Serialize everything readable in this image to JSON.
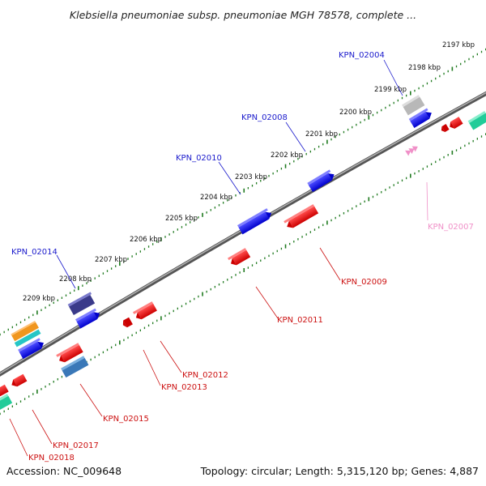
{
  "title": "Klebsiella pneumoniae subsp. pneumoniae MGH 78578, complete ...",
  "footer": {
    "accession": "Accession: NC_009648",
    "summary": "Topology: circular; Length: 5,315,120 bp; Genes: 4,887"
  },
  "colors": {
    "backbone": "#7f7f7f",
    "forward_label": "#1a1acc",
    "reverse_label": "#cc1111",
    "pseudo_label": "#f090c8",
    "tick_minor": "#1f7a1f"
  },
  "ruler_labels": [
    "2197 kbp",
    "2198 kbp",
    "2199 kbp",
    "2200 kbp",
    "2201 kbp",
    "2202 kbp",
    "2203 kbp",
    "2204 kbp",
    "2205 kbp",
    "2206 kbp",
    "2207 kbp",
    "2208 kbp",
    "2209 kbp"
  ],
  "gene_labels": [
    {
      "text": "KPN_02004",
      "strand": "forward"
    },
    {
      "text": "KPN_02008",
      "strand": "forward"
    },
    {
      "text": "KPN_02010",
      "strand": "forward"
    },
    {
      "text": "KPN_02014",
      "strand": "forward"
    },
    {
      "text": "KPN_02007",
      "strand": "pseudo"
    },
    {
      "text": "KPN_02009",
      "strand": "reverse"
    },
    {
      "text": "KPN_02011",
      "strand": "reverse"
    },
    {
      "text": "KPN_02012",
      "strand": "reverse"
    },
    {
      "text": "KPN_02013",
      "strand": "reverse"
    },
    {
      "text": "KPN_02015",
      "strand": "reverse"
    },
    {
      "text": "KPN_02017",
      "strand": "reverse"
    },
    {
      "text": "KPN_02018",
      "strand": "reverse"
    }
  ]
}
